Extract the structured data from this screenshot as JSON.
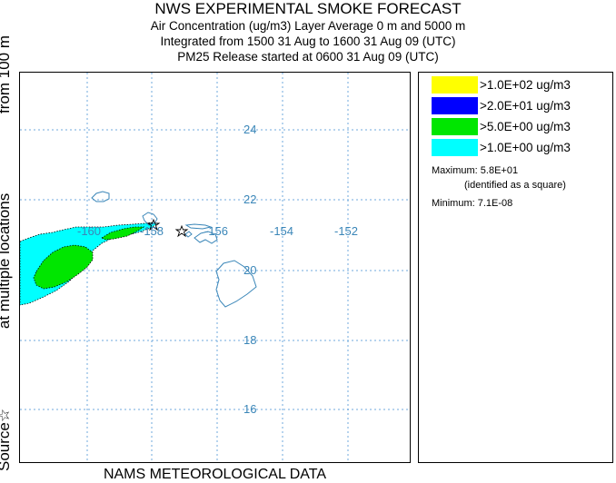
{
  "header": {
    "title": "NWS EXPERIMENTAL SMOKE FORECAST",
    "line2": "Air Concentration (ug/m3) Layer Average    0 m and  5000 m",
    "line3": "Integrated from 1500 31 Aug to 1600 31 Aug 09 (UTC)",
    "line4": "PM25 Release started at 0600 31 Aug 09 (UTC)"
  },
  "side_label": {
    "source": "Source☆",
    "locations": "at multiple locations",
    "from": "from   100 m"
  },
  "map": {
    "lon_labels": [
      "-160",
      "-158",
      "-156",
      "-154",
      "-152"
    ],
    "lat_labels": [
      "24",
      "22",
      "20",
      "18",
      "16"
    ],
    "grid_color": "#6fa8dc",
    "label_color": "#3a86b8",
    "coast_color": "#3a86b8"
  },
  "legend": {
    "items": [
      {
        "label": ">1.0E+02 ug/m3",
        "color": "#ffff00"
      },
      {
        "label": ">2.0E+01 ug/m3",
        "color": "#0000ff"
      },
      {
        "label": ">5.0E+00 ug/m3",
        "color": "#00e600"
      },
      {
        "label": ">1.0E+00 ug/m3",
        "color": "#00ffff"
      }
    ],
    "maximum": "Maximum: 5.8E+01",
    "identified": "(identified as a square)",
    "minimum": "Minimum: 7.1E-08"
  },
  "footer": "NAMS METEOROLOGICAL DATA"
}
